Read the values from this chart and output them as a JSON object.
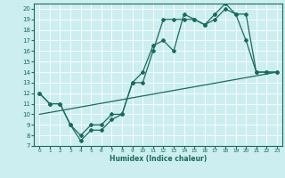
{
  "xlabel": "Humidex (Indice chaleur)",
  "bg_color": "#cceef0",
  "line_color": "#1a6b5a",
  "xlim": [
    -0.5,
    23.5
  ],
  "ylim": [
    7,
    20.5
  ],
  "xticks": [
    0,
    1,
    2,
    3,
    4,
    5,
    6,
    7,
    8,
    9,
    10,
    11,
    12,
    13,
    14,
    15,
    16,
    17,
    18,
    19,
    20,
    21,
    22,
    23
  ],
  "yticks": [
    7,
    8,
    9,
    10,
    11,
    12,
    13,
    14,
    15,
    16,
    17,
    18,
    19,
    20
  ],
  "line1_x": [
    0,
    1,
    2,
    3,
    4,
    5,
    6,
    7,
    8,
    9,
    10,
    11,
    12,
    13,
    14,
    15,
    16,
    17,
    18,
    19,
    20,
    21,
    22,
    23
  ],
  "line1_y": [
    12,
    11,
    11,
    9,
    8,
    9,
    9,
    10,
    10,
    13,
    13,
    16,
    19,
    19,
    19,
    19,
    18.5,
    19,
    20,
    19.5,
    19.5,
    14,
    14,
    14
  ],
  "line2_x": [
    0,
    1,
    2,
    3,
    4,
    5,
    6,
    7,
    8,
    9,
    10,
    11,
    12,
    13,
    14,
    15,
    16,
    17,
    18,
    19,
    20,
    21,
    22,
    23
  ],
  "line2_y": [
    12,
    11,
    11,
    9,
    7.5,
    8.5,
    8.5,
    9.5,
    10,
    13,
    14,
    16.5,
    17,
    16,
    19.5,
    19,
    18.5,
    19.5,
    20.5,
    19.5,
    17,
    14,
    14,
    14
  ],
  "line3_x": [
    0,
    23
  ],
  "line3_y": [
    10,
    14
  ]
}
